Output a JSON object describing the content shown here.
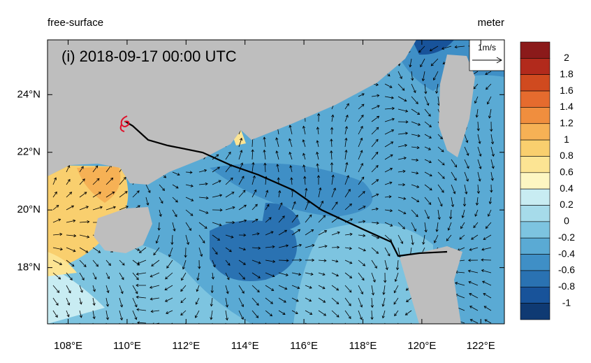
{
  "header": {
    "left": "free-surface",
    "right": "meter"
  },
  "map": {
    "label": "(i) 2018-09-17 00:00 UTC",
    "vector_reference": "1m/s",
    "xlim": [
      107.3,
      122.8
    ],
    "ylim": [
      16.05,
      25.9
    ],
    "xticks": [
      {
        "value": 108,
        "label": "108°E"
      },
      {
        "value": 110,
        "label": "110°E"
      },
      {
        "value": 112,
        "label": "112°E"
      },
      {
        "value": 114,
        "label": "114°E"
      },
      {
        "value": 116,
        "label": "116°E"
      },
      {
        "value": 118,
        "label": "118°E"
      },
      {
        "value": 120,
        "label": "120°E"
      },
      {
        "value": 122,
        "label": "122°E"
      }
    ],
    "yticks": [
      {
        "value": 18,
        "label": "18°N"
      },
      {
        "value": 20,
        "label": "20°N"
      },
      {
        "value": 22,
        "label": "22°N"
      },
      {
        "value": 24,
        "label": "24°N"
      }
    ]
  },
  "colorbar": {
    "ticks": [
      2,
      1.8,
      1.6,
      1.4,
      1.2,
      1,
      0.8,
      0.6,
      0.4,
      0.2,
      0,
      -0.2,
      -0.4,
      -0.6,
      -0.8,
      -1
    ],
    "colors": [
      "#8b1a1a",
      "#b22a1c",
      "#d04a1f",
      "#e56b2e",
      "#f08e3e",
      "#f6b155",
      "#f9cf6e",
      "#fce493",
      "#fdf6c2",
      "#c8ecf2",
      "#a6dbea",
      "#7dc4e0",
      "#5aaad4",
      "#3f8fc6",
      "#2a72b2",
      "#18539a",
      "#0f3a73"
    ]
  }
}
